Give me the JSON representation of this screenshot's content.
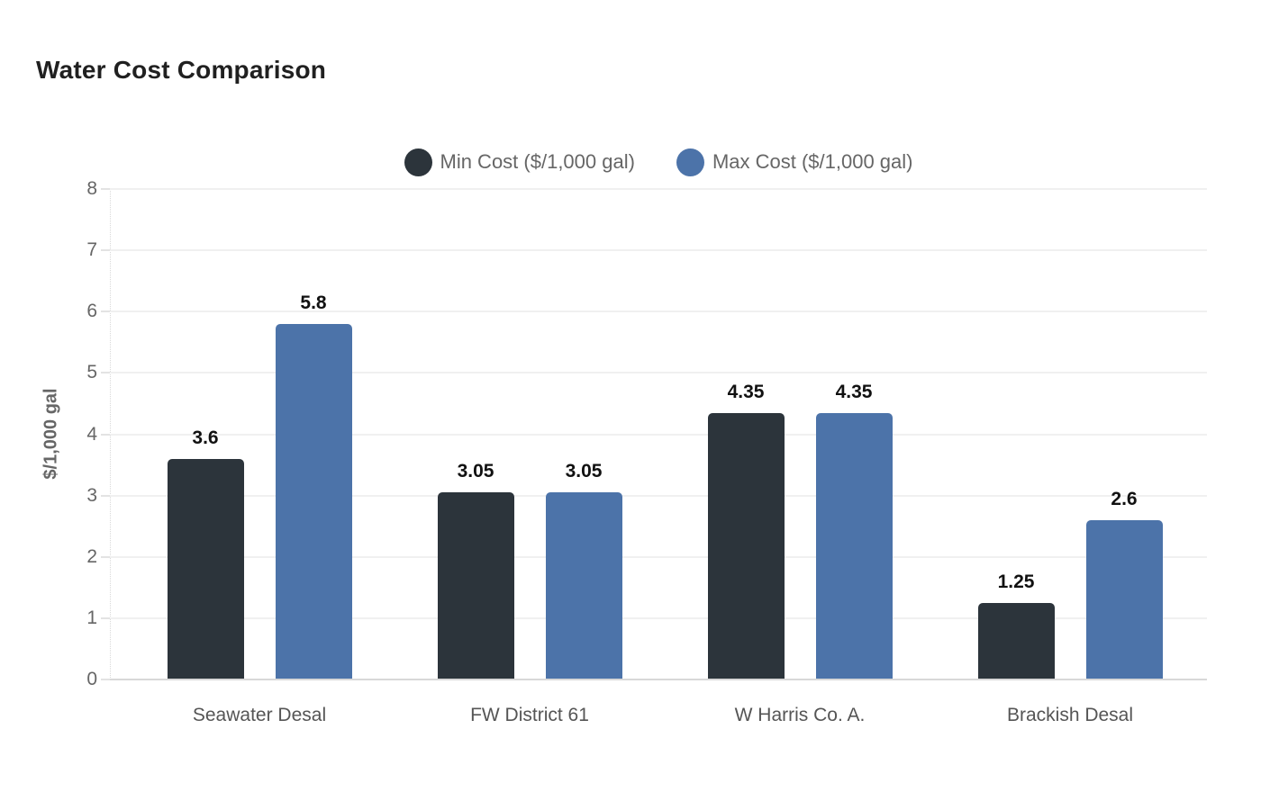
{
  "title": "Water Cost Comparison",
  "chart_data": {
    "type": "bar",
    "title": "Water Cost Comparison",
    "categories": [
      "Seawater Desal",
      "FW District 61",
      "W Harris Co. A.",
      "Brackish Desal"
    ],
    "series": [
      {
        "name": "Min Cost ($/1,000 gal)",
        "color": "#2c343b",
        "values": [
          3.6,
          3.05,
          4.35,
          1.25
        ],
        "labels": [
          "3.6",
          "3.05",
          "4.35",
          "1.25"
        ]
      },
      {
        "name": "Max Cost ($/1,000 gal)",
        "color": "#4c73a9",
        "values": [
          5.8,
          3.05,
          4.35,
          2.6
        ],
        "labels": [
          "5.8",
          "3.05",
          "4.35",
          "2.6"
        ]
      }
    ],
    "xlabel": "",
    "ylabel": "$/1,000 gal",
    "ylim": [
      0,
      8
    ],
    "yticks": [
      0,
      1,
      2,
      3,
      4,
      5,
      6,
      7,
      8
    ],
    "grid": true,
    "legend_position": "top-center",
    "data_labels": true,
    "colors": {
      "grid": "#f0f0f0",
      "baseline": "#d8d8d8",
      "tick_text": "#666666",
      "category_text": "#555555",
      "data_label_text": "#111111",
      "title_text": "#202020",
      "legend_text": "#666666",
      "background": "#ffffff"
    }
  }
}
